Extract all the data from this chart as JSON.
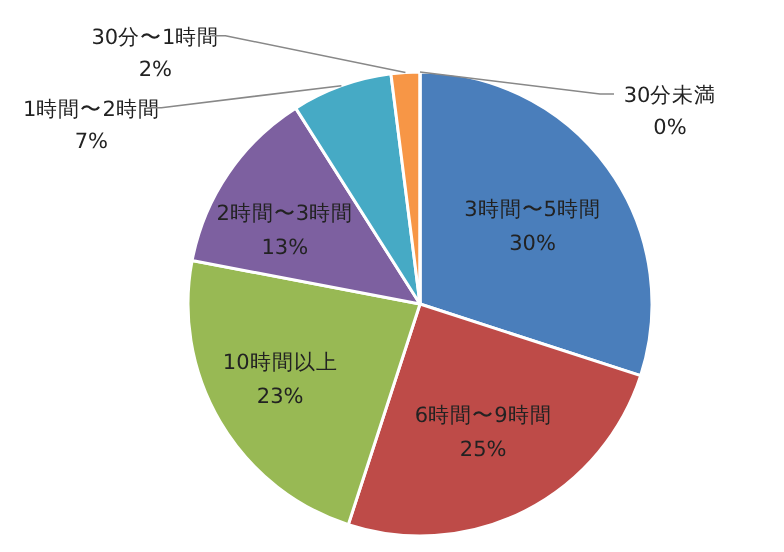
{
  "chart_data": {
    "type": "pie",
    "categories": [
      "3時間〜5時間",
      "6時間〜9時間",
      "10時間以上",
      "2時間〜3時間",
      "1時間〜2時間",
      "30分〜1時間",
      "30分未満"
    ],
    "values": [
      30,
      25,
      23,
      13,
      7,
      2,
      0
    ],
    "colors": [
      "#4a7ebb",
      "#be4b48",
      "#98b954",
      "#7d60a0",
      "#46aac5",
      "#f79646",
      "#4a7ebb"
    ],
    "value_labels": [
      "30%",
      "25%",
      "23%",
      "13%",
      "7%",
      "2%",
      "0%"
    ]
  }
}
